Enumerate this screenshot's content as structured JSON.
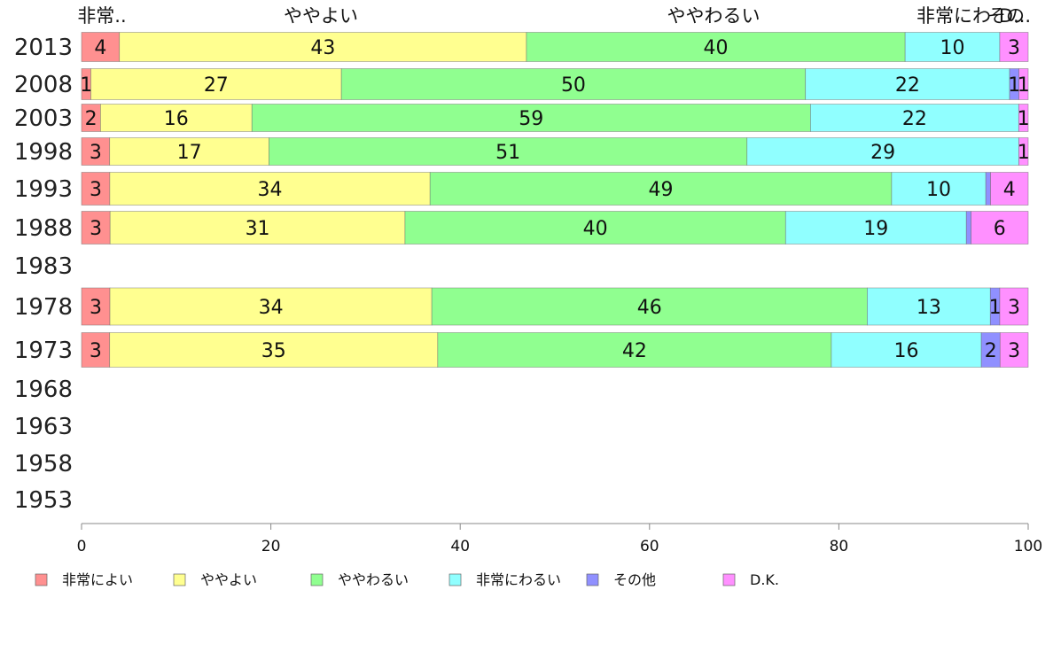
{
  "chart_data": {
    "type": "bar",
    "orientation": "horizontal",
    "stacked": true,
    "categories": [
      "2013",
      "2008",
      "2003",
      "1998",
      "1993",
      "1988",
      "1983",
      "1978",
      "1973",
      "1968",
      "1963",
      "1958",
      "1953"
    ],
    "series": [
      {
        "name": "非常によい",
        "color": "#ff9090",
        "values": [
          4,
          1,
          2,
          3,
          3,
          3,
          null,
          3,
          3,
          null,
          null,
          null,
          null
        ]
      },
      {
        "name": "ややよい",
        "color": "#ffff90",
        "values": [
          43,
          27,
          16,
          17,
          34,
          31,
          null,
          34,
          35,
          null,
          null,
          null,
          null
        ]
      },
      {
        "name": "ややわるい",
        "color": "#90ff90",
        "values": [
          40,
          50,
          59,
          51,
          49,
          40,
          null,
          46,
          42,
          null,
          null,
          null,
          null
        ]
      },
      {
        "name": "非常にわるい",
        "color": "#90ffff",
        "values": [
          10,
          22,
          22,
          29,
          10,
          19,
          null,
          13,
          16,
          null,
          null,
          null,
          null
        ]
      },
      {
        "name": "その他",
        "color": "#9090ff",
        "values": [
          0,
          1,
          0,
          0,
          0.5,
          0.5,
          null,
          1,
          2,
          null,
          null,
          null,
          null
        ]
      },
      {
        "name": "D.K.",
        "color": "#ff90ff",
        "values": [
          3,
          1,
          1,
          1,
          4,
          6,
          null,
          3,
          3,
          null,
          null,
          null,
          null
        ]
      }
    ],
    "segment_labels": [
      [
        "4",
        "43",
        "40",
        "10",
        "",
        "3"
      ],
      [
        "1",
        "27",
        "50",
        "22",
        "1",
        "1"
      ],
      [
        "2",
        "16",
        "59",
        "22",
        "",
        "1"
      ],
      [
        "3",
        "17",
        "51",
        "29",
        "",
        "1"
      ],
      [
        "3",
        "34",
        "49",
        "10",
        "",
        "4"
      ],
      [
        "3",
        "31",
        "40",
        "19",
        "",
        "6"
      ],
      [],
      [
        "3",
        "34",
        "46",
        "13",
        "1",
        "3"
      ],
      [
        "3",
        "35",
        "42",
        "16",
        "2",
        "3"
      ],
      [],
      [],
      [],
      []
    ],
    "top_labels": [
      "非常..",
      "ややよい",
      "ややわるい",
      "非常にわ",
      "その",
      "D..."
    ],
    "xlim": [
      0,
      100
    ],
    "xticks": [
      "0",
      "20",
      "40",
      "60",
      "80",
      "100"
    ],
    "legend_position": "bottom",
    "grid": false
  }
}
